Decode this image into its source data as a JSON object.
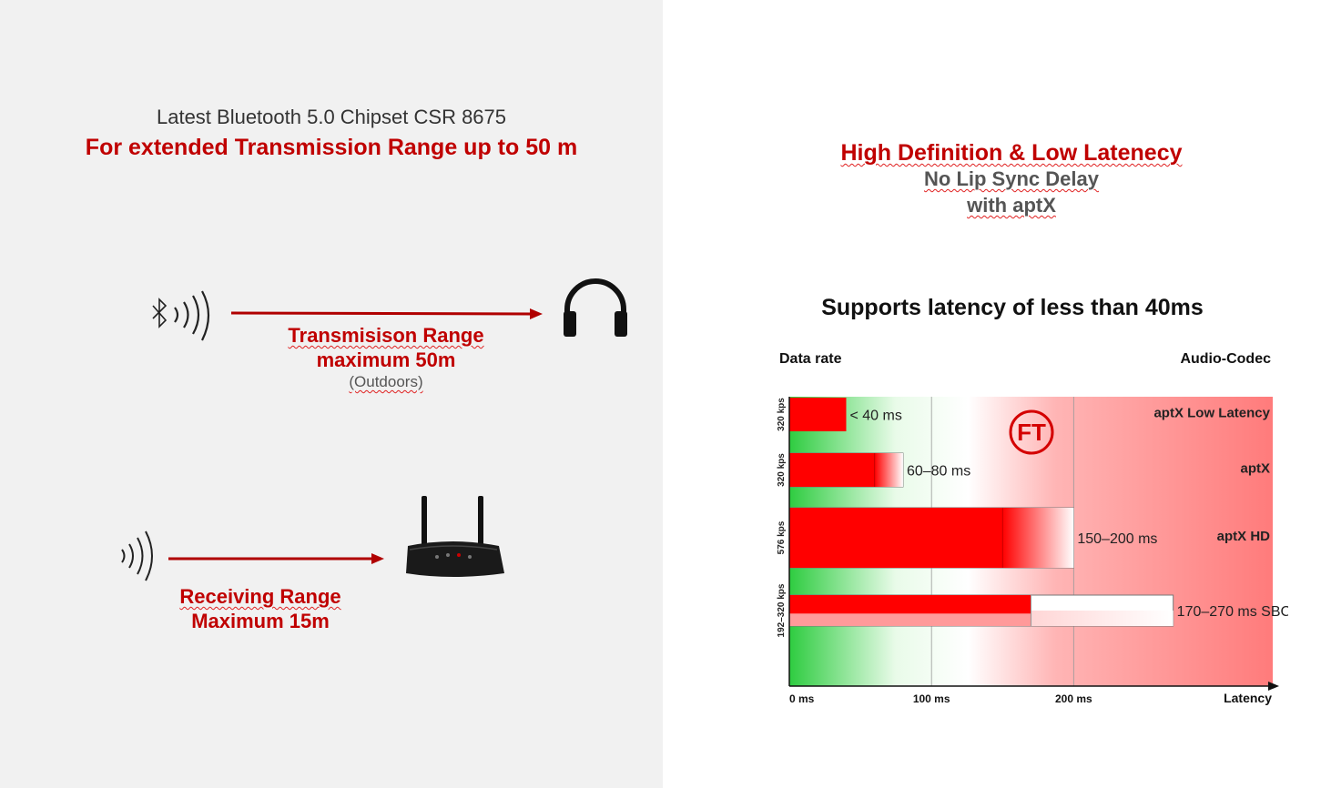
{
  "left": {
    "chipset_text": "Latest Bluetooth 5.0 Chipset CSR 8675",
    "range_headline": "For extended Transmission Range up to 50 m",
    "transmission": {
      "line1": "Transmisison Range",
      "line2": "maximum 50m",
      "note": "(Outdoors)"
    },
    "receiving": {
      "line1": "Receiving Range",
      "line2": "Maximum 15m"
    },
    "icons": [
      "bluetooth-signal-icon",
      "arrow-right-icon",
      "headphones-icon",
      "signal-waves-icon",
      "router-device-icon"
    ]
  },
  "right": {
    "headline": "High Definition & Low Latenecy",
    "sub1": "No Lip Sync Delay",
    "sub2": "with aptX",
    "supports": "Supports latency of less than 40ms"
  },
  "colors": {
    "brand_red": "#c00000",
    "bar_red": "#ff0000",
    "green_zone": "#2ecc40",
    "red_zone": "#ff7b7b"
  },
  "chart_data": {
    "type": "bar",
    "orientation": "horizontal",
    "data_rate_label": "Data rate",
    "codec_label": "Audio-Codec",
    "xlabel": "Latency",
    "xlim": [
      0,
      340
    ],
    "x_ticks": [
      {
        "value": 0,
        "label": "0 ms"
      },
      {
        "value": 100,
        "label": "100 ms"
      },
      {
        "value": 200,
        "label": "200 ms"
      }
    ],
    "series": [
      {
        "codec": "aptX Low Latency",
        "rate": "320 kps",
        "min": 0,
        "max": 40,
        "label": "< 40 ms"
      },
      {
        "codec": "aptX",
        "rate": "320 kps",
        "min": 60,
        "max": 80,
        "label": "60–80 ms"
      },
      {
        "codec": "aptX HD",
        "rate": "576 kps",
        "min": 150,
        "max": 200,
        "label": "150–200 ms"
      },
      {
        "codec": "SBC",
        "rate": "192–320 kps",
        "min": 170,
        "max": 270,
        "label": "170–270 ms SBC"
      }
    ],
    "logo_text": "FT"
  }
}
